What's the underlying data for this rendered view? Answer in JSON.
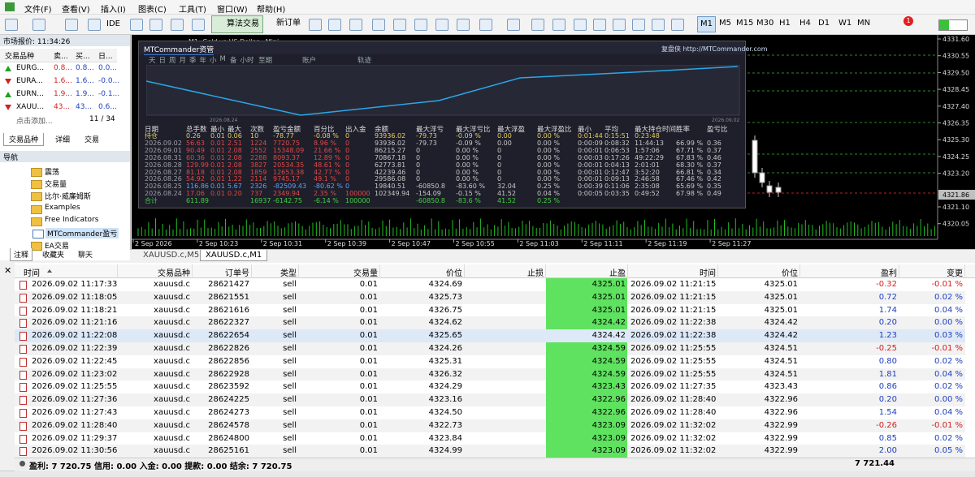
{
  "menu": [
    "文件(F)",
    "查看(V)",
    "插入(I)",
    "图表(C)",
    "工具(T)",
    "窗口(W)",
    "帮助(H)"
  ],
  "toolbar": {
    "ide": "IDE",
    "algo": "算法交易",
    "new_order": "新订单",
    "periods": [
      "M1",
      "M5",
      "M15",
      "M30",
      "H1",
      "H4",
      "D1",
      "W1",
      "MN"
    ],
    "selected_period": 0,
    "badge": "1"
  },
  "market_watch": {
    "title": "市场报价: 11:34:26",
    "columns": [
      "交易品种",
      "卖...",
      "买...",
      "日..."
    ],
    "rows": [
      [
        "EURG...",
        "0.8...",
        "0.8...",
        "0.0..."
      ],
      [
        "EURA...",
        "1.6...",
        "1.6...",
        "-0.0..."
      ],
      [
        "EURN...",
        "1.9...",
        "1.9...",
        "-0.1..."
      ],
      [
        "XAUU...",
        "43...",
        "43...",
        "0.6..."
      ]
    ],
    "add": "点击添加...",
    "count": "11 / 34",
    "tabs": [
      "交易品种",
      "详细",
      "交易"
    ]
  },
  "navigator": {
    "title": "导航",
    "items": [
      "震荡",
      "交易量",
      "比尔·威廉姆斯",
      "Examples",
      "Free Indicators",
      "MTCommander盈亏",
      "EA交易"
    ],
    "tabs": [
      "注释",
      "收藏夹",
      "聊天"
    ]
  },
  "chart": {
    "title": "M1: Gold vs US Dollar - Mini",
    "price_labels": [
      "4331.60",
      "4330.55",
      "4329.50",
      "4328.45",
      "4327.40",
      "4326.35",
      "4325.30",
      "4324.25",
      "4323.20",
      "4321.10",
      "4320.05"
    ],
    "current_price": "4321.86",
    "time_labels": [
      "2 Sep 2026",
      "2 Sep 10:23",
      "2 Sep 10:31",
      "2 Sep 10:39",
      "2 Sep 10:47",
      "2 Sep 10:55",
      "2 Sep 11:03",
      "2 Sep 11:11",
      "2 Sep 11:19",
      "2 Sep 11:27"
    ],
    "tabs": [
      "XAUUSD.c,M5",
      "XAUUSD.c,M1"
    ],
    "selected_tab": 1
  },
  "commander": {
    "title": "MTCommander资管",
    "site": "复盘侠 http://MTCommander.com",
    "periods": [
      "天",
      "日",
      "周",
      "月",
      "季",
      "年",
      "小",
      "M",
      "备",
      "小时",
      "至期"
    ],
    "views": [
      "账户",
      "轨迹"
    ],
    "chart_dates": [
      "2026.08.24",
      "2026.09.02"
    ],
    "columns": [
      "日期",
      "总手数",
      "最小",
      "最大",
      "次数",
      "盈亏金额",
      "百分比",
      "出入金",
      "余额",
      "最大浮亏",
      "最大浮亏比",
      "最大浮盈",
      "最大浮盈比",
      "最小",
      "平均",
      "最大持仓时间",
      "胜率",
      "盈亏比"
    ],
    "rows": [
      [
        "持仓",
        "0.26",
        "0.01",
        "0.06",
        "10",
        "-78.77",
        "-0.08 %",
        "0",
        "93936.02",
        "-79.73",
        "-0.09 %",
        "0.00",
        "0.00 %",
        "0:01:44",
        "0:15:51",
        "0:23:48",
        null,
        null
      ],
      [
        "2026.09.02",
        "56.63",
        "0.01",
        "2.51",
        "1224",
        "7720.75",
        "8.96 %",
        "0",
        "93936.02",
        "-79.73",
        "-0.09 %",
        "0.00",
        "0.00 %",
        "0:00:09",
        "0:08:32",
        "11:44:13",
        "66.99 %",
        "0.36"
      ],
      [
        "2026.09.01",
        "90.49",
        "0.01",
        "2.08",
        "2552",
        "15348.09",
        "21.66 %",
        "0",
        "86215.27",
        "0",
        "0.00 %",
        "0",
        "0.00 %",
        "0:00:01",
        "0:06:53",
        "1:57:06",
        "67.71 %",
        "0.37"
      ],
      [
        "2026.08.31",
        "60.36",
        "0.01",
        "2.08",
        "2288",
        "8093.37",
        "12.89 %",
        "0",
        "70867.18",
        "0",
        "0.00 %",
        "0",
        "0.00 %",
        "0:00:03",
        "0:17:26",
        "49:22:29",
        "67.83 %",
        "0.46"
      ],
      [
        "2026.08.28",
        "129.99",
        "0.01",
        "2.08",
        "3827",
        "20534.35",
        "48.61 %",
        "0",
        "62773.81",
        "0",
        "0.00 %",
        "0",
        "0.00 %",
        "0:00:01",
        "0:04:13",
        "2:01:01",
        "68.30 %",
        "0.37"
      ],
      [
        "2026.08.27",
        "81.18",
        "0.01",
        "2.08",
        "1859",
        "12653.38",
        "42.77 %",
        "0",
        "42239.46",
        "0",
        "0.00 %",
        "0",
        "0.00 %",
        "0:00:01",
        "0:12:47",
        "3:52:20",
        "66.81 %",
        "0.34"
      ],
      [
        "2026.08.26",
        "54.92",
        "0.01",
        "1.22",
        "2114",
        "9745.17",
        "49.1 %",
        "0",
        "29586.08",
        "0",
        "0.00 %",
        "0",
        "0.00 %",
        "0:00:01",
        "0:09:13",
        "2:46:58",
        "67.46 %",
        "0.42"
      ],
      [
        "2026.08.25",
        "116.86",
        "0.01",
        "5.67",
        "2326",
        "-82509.43",
        "-80.62 %",
        "0",
        "19840.51",
        "-60850.8",
        "-83.60 %",
        "32.04",
        "0.25 %",
        "0:00:39",
        "0:11:06",
        "2:35:08",
        "65.69 %",
        "0.35"
      ],
      [
        "2026.08.24",
        "17.06",
        "0.01",
        "0.20",
        "737",
        "2349.94",
        "2.35 %",
        "100000",
        "102349.94",
        "-154.09",
        "-0.15 %",
        "41.52",
        "0.04 %",
        "0:00:05",
        "0:03:35",
        "0:49:52",
        "67.98 %",
        "0.49"
      ],
      [
        "合计",
        "611.89",
        null,
        null,
        "16937",
        "-6142.75",
        "-6.14 %",
        "100000",
        null,
        "-60850.8",
        "-83.6 %",
        "41.52",
        "0.25 %",
        null,
        null,
        null,
        null,
        null
      ]
    ]
  },
  "trades": {
    "columns": [
      "时间",
      "交易品种",
      "订单号",
      "类型",
      "交易量",
      "价位",
      "止损",
      "止盈",
      "时间",
      "价位",
      "盈利",
      "变更"
    ],
    "selected_row": 4,
    "rows": [
      [
        "2026.09.02 11:17:33",
        "xauusd.c",
        "28621427",
        "sell",
        "0.01",
        "4324.69",
        null,
        "4325.01",
        "2026.09.02 11:21:15",
        "4325.01",
        "-0.32",
        "-0.01 %"
      ],
      [
        "2026.09.02 11:18:05",
        "xauusd.c",
        "28621551",
        "sell",
        "0.01",
        "4325.73",
        null,
        "4325.01",
        "2026.09.02 11:21:15",
        "4325.01",
        "0.72",
        "0.02 %"
      ],
      [
        "2026.09.02 11:18:21",
        "xauusd.c",
        "28621616",
        "sell",
        "0.01",
        "4326.75",
        null,
        "4325.01",
        "2026.09.02 11:21:15",
        "4325.01",
        "1.74",
        "0.04 %"
      ],
      [
        "2026.09.02 11:21:16",
        "xauusd.c",
        "28622327",
        "sell",
        "0.01",
        "4324.62",
        null,
        "4324.42",
        "2026.09.02 11:22:38",
        "4324.42",
        "0.20",
        "0.00 %"
      ],
      [
        "2026.09.02 11:22:08",
        "xauusd.c",
        "28622654",
        "sell",
        "0.01",
        "4325.65",
        null,
        "4324.42",
        "2026.09.02 11:22:38",
        "4324.42",
        "1.23",
        "0.03 %"
      ],
      [
        "2026.09.02 11:22:39",
        "xauusd.c",
        "28622826",
        "sell",
        "0.01",
        "4324.26",
        null,
        "4324.59",
        "2026.09.02 11:25:55",
        "4324.51",
        "-0.25",
        "-0.01 %"
      ],
      [
        "2026.09.02 11:22:45",
        "xauusd.c",
        "28622856",
        "sell",
        "0.01",
        "4325.31",
        null,
        "4324.59",
        "2026.09.02 11:25:55",
        "4324.51",
        "0.80",
        "0.02 %"
      ],
      [
        "2026.09.02 11:23:02",
        "xauusd.c",
        "28622928",
        "sell",
        "0.01",
        "4326.32",
        null,
        "4324.59",
        "2026.09.02 11:25:55",
        "4324.51",
        "1.81",
        "0.04 %"
      ],
      [
        "2026.09.02 11:25:55",
        "xauusd.c",
        "28623592",
        "sell",
        "0.01",
        "4324.29",
        null,
        "4323.43",
        "2026.09.02 11:27:35",
        "4323.43",
        "0.86",
        "0.02 %"
      ],
      [
        "2026.09.02 11:27:36",
        "xauusd.c",
        "28624225",
        "sell",
        "0.01",
        "4323.16",
        null,
        "4322.96",
        "2026.09.02 11:28:40",
        "4322.96",
        "0.20",
        "0.00 %"
      ],
      [
        "2026.09.02 11:27:43",
        "xauusd.c",
        "28624273",
        "sell",
        "0.01",
        "4324.50",
        null,
        "4322.96",
        "2026.09.02 11:28:40",
        "4322.96",
        "1.54",
        "0.04 %"
      ],
      [
        "2026.09.02 11:28:40",
        "xauusd.c",
        "28624578",
        "sell",
        "0.01",
        "4322.73",
        null,
        "4323.09",
        "2026.09.02 11:32:02",
        "4322.99",
        "-0.26",
        "-0.01 %"
      ],
      [
        "2026.09.02 11:29:37",
        "xauusd.c",
        "28624800",
        "sell",
        "0.01",
        "4323.84",
        null,
        "4323.09",
        "2026.09.02 11:32:02",
        "4322.99",
        "0.85",
        "0.02 %"
      ],
      [
        "2026.09.02 11:30:56",
        "xauusd.c",
        "28625161",
        "sell",
        "0.01",
        "4324.99",
        null,
        "4323.09",
        "2026.09.02 11:32:02",
        "4322.99",
        "2.00",
        "0.05 %"
      ]
    ],
    "footer": "盈利: 7 720.75  信用: 0.00  入金: 0.00  提款: 0.00  结余: 7 720.75",
    "total": "7 721.44"
  }
}
